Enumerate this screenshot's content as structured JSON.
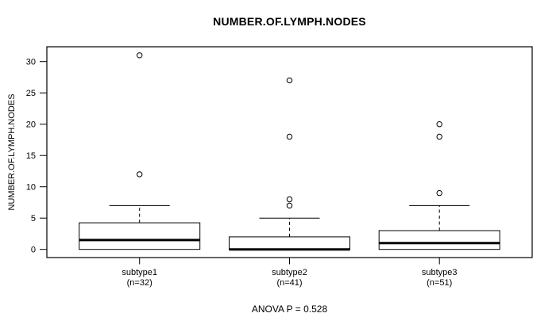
{
  "chart_data": {
    "type": "boxplot",
    "title": "NUMBER.OF.LYMPH.NODES",
    "ylabel": "NUMBER.OF.LYMPH.NODES",
    "xlabel": "",
    "yticks": [
      0,
      5,
      10,
      15,
      20,
      25,
      30
    ],
    "ylim": [
      -1.3,
      32.4
    ],
    "grid": false,
    "legend": "none",
    "anova_label": "ANOVA P = 0.528",
    "box_color": "#000000",
    "box_fill": "#ffffff",
    "groups": [
      {
        "name": "subtype1",
        "n": 32,
        "label_line1": "subtype1",
        "label_line2": "(n=32)",
        "min": 0,
        "q1": 0,
        "median": 1.5,
        "q3": 4.25,
        "whisker_low": 0,
        "whisker_high": 7,
        "outliers": [
          12,
          31
        ]
      },
      {
        "name": "subtype2",
        "n": 41,
        "label_line1": "subtype2",
        "label_line2": "(n=41)",
        "min": 0,
        "q1": 0,
        "median": 0,
        "q3": 2,
        "whisker_low": 0,
        "whisker_high": 5,
        "outliers": [
          7,
          8,
          18,
          27
        ]
      },
      {
        "name": "subtype3",
        "n": 51,
        "label_line1": "subtype3",
        "label_line2": "(n=51)",
        "min": 0,
        "q1": 0,
        "median": 1,
        "q3": 3,
        "whisker_low": 0,
        "whisker_high": 7,
        "outliers": [
          9,
          18,
          20
        ]
      }
    ]
  }
}
